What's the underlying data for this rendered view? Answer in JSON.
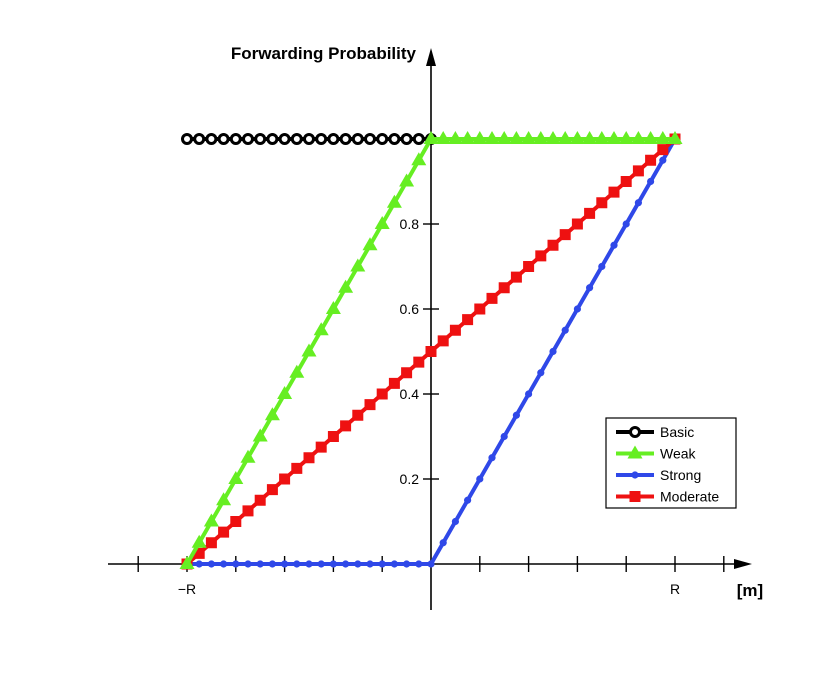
{
  "chart_data": {
    "type": "line",
    "ylabel": "Forwarding Probability",
    "xlabel": "[m]",
    "xlim": [
      -1,
      1
    ],
    "ylim": [
      0,
      1
    ],
    "x_ticks": [
      {
        "value": -1,
        "label": "−R"
      },
      {
        "value": 1,
        "label": "R"
      }
    ],
    "y_ticks": [
      {
        "value": 0.2,
        "label": "0.2"
      },
      {
        "value": 0.4,
        "label": "0.4"
      },
      {
        "value": 0.6,
        "label": "0.6"
      },
      {
        "value": 0.8,
        "label": "0.8"
      }
    ],
    "legend_position": "bottom-right",
    "grid": false,
    "series": [
      {
        "name": "Basic",
        "color": "#000000",
        "marker": "open-circle",
        "x": [
          -1,
          -0.95,
          -0.9,
          -0.85,
          -0.8,
          -0.75,
          -0.7,
          -0.65,
          -0.6,
          -0.55,
          -0.5,
          -0.45,
          -0.4,
          -0.35,
          -0.3,
          -0.25,
          -0.2,
          -0.15,
          -0.1,
          -0.05,
          0
        ],
        "y": [
          1,
          1,
          1,
          1,
          1,
          1,
          1,
          1,
          1,
          1,
          1,
          1,
          1,
          1,
          1,
          1,
          1,
          1,
          1,
          1,
          1
        ]
      },
      {
        "name": "Weak",
        "color": "#66ee22",
        "marker": "triangle",
        "x": [
          -1,
          -0.95,
          -0.9,
          -0.85,
          -0.8,
          -0.75,
          -0.7,
          -0.65,
          -0.6,
          -0.55,
          -0.5,
          -0.45,
          -0.4,
          -0.35,
          -0.3,
          -0.25,
          -0.2,
          -0.15,
          -0.1,
          -0.05,
          0,
          0.05,
          0.1,
          0.15,
          0.2,
          0.25,
          0.3,
          0.35,
          0.4,
          0.45,
          0.5,
          0.55,
          0.6,
          0.65,
          0.7,
          0.75,
          0.8,
          0.85,
          0.9,
          0.95,
          1
        ],
        "y": [
          0,
          0.05,
          0.1,
          0.15,
          0.2,
          0.25,
          0.3,
          0.35,
          0.4,
          0.45,
          0.5,
          0.55,
          0.6,
          0.65,
          0.7,
          0.75,
          0.8,
          0.85,
          0.9,
          0.95,
          1,
          1,
          1,
          1,
          1,
          1,
          1,
          1,
          1,
          1,
          1,
          1,
          1,
          1,
          1,
          1,
          1,
          1,
          1,
          1,
          1
        ]
      },
      {
        "name": "Strong",
        "color": "#2f48e8",
        "marker": "dot",
        "x": [
          -1,
          -0.95,
          -0.9,
          -0.85,
          -0.8,
          -0.75,
          -0.7,
          -0.65,
          -0.6,
          -0.55,
          -0.5,
          -0.45,
          -0.4,
          -0.35,
          -0.3,
          -0.25,
          -0.2,
          -0.15,
          -0.1,
          -0.05,
          0,
          0.05,
          0.1,
          0.15,
          0.2,
          0.25,
          0.3,
          0.35,
          0.4,
          0.45,
          0.5,
          0.55,
          0.6,
          0.65,
          0.7,
          0.75,
          0.8,
          0.85,
          0.9,
          0.95,
          1
        ],
        "y": [
          0,
          0,
          0,
          0,
          0,
          0,
          0,
          0,
          0,
          0,
          0,
          0,
          0,
          0,
          0,
          0,
          0,
          0,
          0,
          0,
          0,
          0.05,
          0.1,
          0.15,
          0.2,
          0.25,
          0.3,
          0.35,
          0.4,
          0.45,
          0.5,
          0.55,
          0.6,
          0.65,
          0.7,
          0.75,
          0.8,
          0.85,
          0.9,
          0.95,
          1
        ]
      },
      {
        "name": "Moderate",
        "color": "#ee1111",
        "marker": "square",
        "x": [
          -1,
          -0.95,
          -0.9,
          -0.85,
          -0.8,
          -0.75,
          -0.7,
          -0.65,
          -0.6,
          -0.55,
          -0.5,
          -0.45,
          -0.4,
          -0.35,
          -0.3,
          -0.25,
          -0.2,
          -0.15,
          -0.1,
          -0.05,
          0,
          0.05,
          0.1,
          0.15,
          0.2,
          0.25,
          0.3,
          0.35,
          0.4,
          0.45,
          0.5,
          0.55,
          0.6,
          0.65,
          0.7,
          0.75,
          0.8,
          0.85,
          0.9,
          0.95,
          1
        ],
        "y": [
          0,
          0.025,
          0.05,
          0.075,
          0.1,
          0.125,
          0.15,
          0.175,
          0.2,
          0.225,
          0.25,
          0.275,
          0.3,
          0.325,
          0.35,
          0.375,
          0.4,
          0.425,
          0.45,
          0.475,
          0.5,
          0.525,
          0.55,
          0.575,
          0.6,
          0.625,
          0.65,
          0.675,
          0.7,
          0.725,
          0.75,
          0.775,
          0.8,
          0.825,
          0.85,
          0.875,
          0.9,
          0.925,
          0.95,
          0.975,
          1
        ]
      }
    ]
  }
}
